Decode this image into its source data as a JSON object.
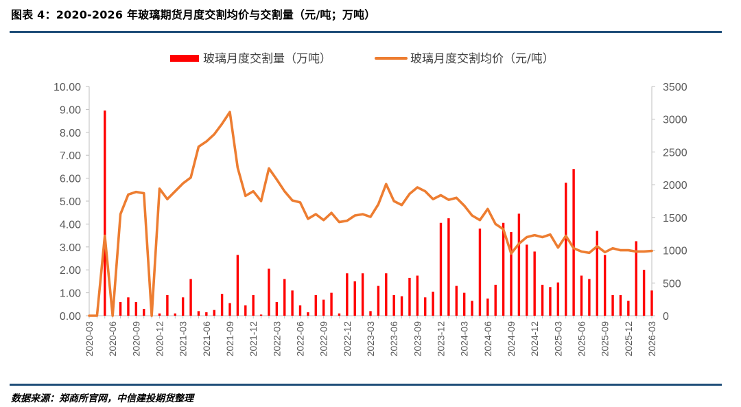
{
  "figure": {
    "title": "图表 4：2020-2026 年玻璃期货月度交割均价与交割量（元/吨；万吨）",
    "source": "数据来源：郑商所官网，中信建投期货整理"
  },
  "chart_data": {
    "type": "bar+line",
    "title": "",
    "legend_position": "top-center",
    "grid": false,
    "x": [
      "2020-03",
      "2020-04",
      "2020-05",
      "2020-06",
      "2020-07",
      "2020-08",
      "2020-09",
      "2020-10",
      "2020-11",
      "2020-12",
      "2021-01",
      "2021-02",
      "2021-03",
      "2021-04",
      "2021-05",
      "2021-06",
      "2021-07",
      "2021-08",
      "2021-09",
      "2021-10",
      "2021-11",
      "2021-12",
      "2022-01",
      "2022-02",
      "2022-03",
      "2022-04",
      "2022-05",
      "2022-06",
      "2022-07",
      "2022-08",
      "2022-09",
      "2022-10",
      "2022-11",
      "2022-12",
      "2023-01",
      "2023-02",
      "2023-03",
      "2023-04",
      "2023-05",
      "2023-06",
      "2023-07",
      "2023-08",
      "2023-09",
      "2023-10",
      "2023-11",
      "2023-12",
      "2024-01",
      "2024-02",
      "2024-03",
      "2024-04",
      "2024-05",
      "2024-06",
      "2024-07",
      "2024-08",
      "2024-09",
      "2024-10",
      "2024-11",
      "2024-12",
      "2025-01",
      "2025-02",
      "2025-03",
      "2025-04",
      "2025-05",
      "2025-06",
      "2025-07",
      "2025-08",
      "2025-09",
      "2025-10",
      "2025-11",
      "2025-12",
      "2026-01",
      "2026-02",
      "2026-03"
    ],
    "x_tick_labels": [
      "2020-03",
      "2020-06",
      "2020-09",
      "2020-12",
      "2021-03",
      "2021-06",
      "2021-09",
      "2021-12",
      "2022-03",
      "2022-06",
      "2022-09",
      "2022-12",
      "2023-03",
      "2023-06",
      "2023-09",
      "2023-12",
      "2024-03",
      "2024-06",
      "2024-09",
      "2024-12",
      "2025-03",
      "2025-06",
      "2025-09",
      "2025-12",
      "2026-03"
    ],
    "left_axis": {
      "ylim": [
        0,
        10
      ],
      "ticks": [
        "0.00",
        "1.00",
        "2.00",
        "3.00",
        "4.00",
        "5.00",
        "6.00",
        "7.00",
        "8.00",
        "9.00",
        "10.00"
      ]
    },
    "right_axis": {
      "ylim": [
        0,
        3500
      ],
      "ticks": [
        "0",
        "500",
        "1000",
        "1500",
        "2000",
        "2500",
        "3000",
        "3500"
      ]
    },
    "series": [
      {
        "name": "玻璃月度交割量（万吨）",
        "type": "bar",
        "axis": "left",
        "color": "#ff0000",
        "values": [
          0,
          0,
          8.95,
          0,
          0.6,
          0.8,
          0.6,
          0.3,
          0,
          0.1,
          0.9,
          0.1,
          0.8,
          1.6,
          0.2,
          0.15,
          0.25,
          0.95,
          0.55,
          2.65,
          0.45,
          0.9,
          0.05,
          2.05,
          0.6,
          1.6,
          1.1,
          0.45,
          0.15,
          0.9,
          0.7,
          1.0,
          0.1,
          1.85,
          1.5,
          1.85,
          0.2,
          1.3,
          1.85,
          0.9,
          0.85,
          1.65,
          1.75,
          0.8,
          1.05,
          4.05,
          4.25,
          1.3,
          1.0,
          0.65,
          3.8,
          0.75,
          1.35,
          4.05,
          3.65,
          4.45,
          3.1,
          2.8,
          1.35,
          1.25,
          1.45,
          5.8,
          6.4,
          1.75,
          1.6,
          3.7,
          2.65,
          0.9,
          0.9,
          0.65,
          3.25,
          2.0,
          1.1
        ]
      },
      {
        "name": "玻璃月度交割均价（元/吨）",
        "type": "line",
        "axis": "right",
        "color": "#ed7d31",
        "values": [
          0,
          0,
          1220,
          0,
          1550,
          1850,
          1890,
          1870,
          0,
          1940,
          1780,
          1900,
          2020,
          2110,
          2580,
          2660,
          2770,
          2930,
          3110,
          2260,
          1830,
          1900,
          1750,
          2250,
          2080,
          1900,
          1760,
          1730,
          1480,
          1550,
          1460,
          1570,
          1430,
          1450,
          1530,
          1550,
          1510,
          1700,
          2010,
          1750,
          1690,
          1860,
          1960,
          1900,
          1780,
          1840,
          1770,
          1800,
          1680,
          1530,
          1460,
          1630,
          1400,
          1320,
          950,
          1100,
          1200,
          1230,
          1200,
          1240,
          1040,
          1220,
          1030,
          980,
          960,
          1060,
          970,
          1030,
          1000,
          1000,
          980,
          980,
          990
        ]
      }
    ]
  }
}
